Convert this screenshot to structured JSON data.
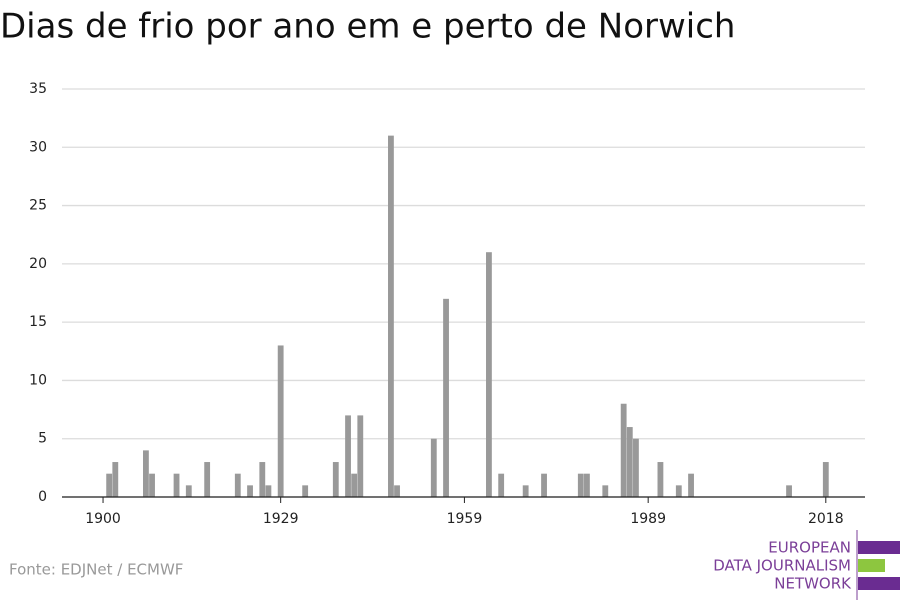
{
  "chart_data": {
    "type": "bar",
    "title": "Dias de frio por ano em e perto de Norwich",
    "source": "Fonte: EDJNet / ECMWF",
    "color": "#999999",
    "x": [
      1901,
      1902,
      1907,
      1908,
      1912,
      1914,
      1917,
      1922,
      1924,
      1926,
      1927,
      1929,
      1933,
      1938,
      1940,
      1941,
      1942,
      1947,
      1948,
      1954,
      1956,
      1963,
      1965,
      1969,
      1972,
      1978,
      1979,
      1982,
      1985,
      1986,
      1987,
      1991,
      1994,
      1996,
      2012,
      2018
    ],
    "values": [
      2,
      3,
      4,
      2,
      2,
      1,
      3,
      2,
      1,
      3,
      1,
      13,
      1,
      3,
      7,
      2,
      7,
      31,
      1,
      5,
      17,
      21,
      2,
      1,
      2,
      2,
      2,
      1,
      8,
      6,
      5,
      3,
      1,
      2,
      1,
      3
    ],
    "xlim": [
      1893.3,
      2024.4
    ],
    "xticks": [
      1900,
      1929,
      1959,
      1989,
      2018
    ],
    "ylim": [
      0,
      35
    ],
    "yticks": [
      0,
      5,
      10,
      15,
      20,
      25,
      30,
      35
    ],
    "grid": true
  },
  "logo": {
    "lines": [
      "EUROPEAN",
      "DATA JOURNALISM",
      "NETWORK"
    ]
  }
}
